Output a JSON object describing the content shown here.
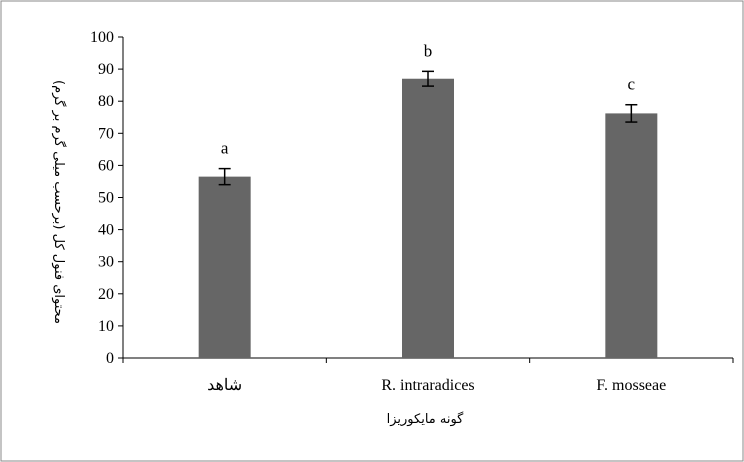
{
  "chart_data": {
    "type": "bar",
    "categories": [
      "شاهد",
      "R. intraradices",
      "F. mosseae"
    ],
    "values": [
      56.5,
      87,
      76.2
    ],
    "error_bars": [
      2.5,
      2.3,
      2.7
    ],
    "significance_labels": [
      "a",
      "b",
      "c"
    ],
    "xlabel": "گونه مایکوریزا",
    "ylabel": "محتوای فنول کل (برحسب میلی گرم بر گرم)",
    "ylim": [
      0,
      100
    ],
    "y_ticks": [
      0,
      10,
      20,
      30,
      40,
      50,
      60,
      70,
      80,
      90,
      100
    ],
    "grid": false,
    "legend": "none"
  },
  "colors": {
    "bar": "#666666",
    "axis": "#000000",
    "frame": "#888888",
    "background": "#ffffff"
  }
}
